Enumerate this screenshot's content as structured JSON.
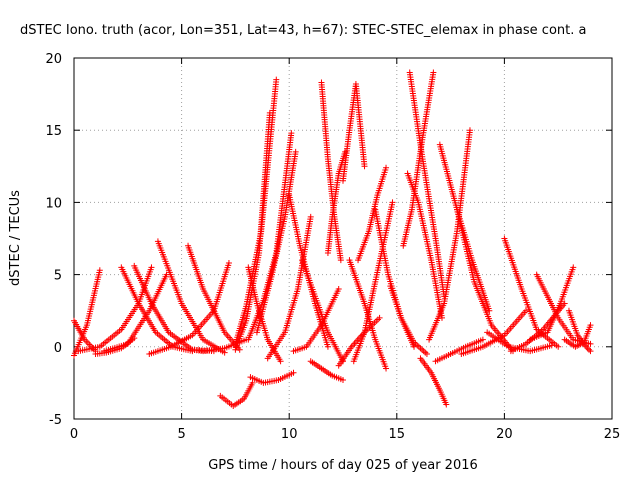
{
  "chart_data": {
    "type": "scatter",
    "title": "dSTEC Iono. truth (acor, Lon=351, Lat=43, h=67): STEC-STEC_elemax in phase cont. a",
    "xlabel": "GPS time / hours of day 025 of year 2016",
    "ylabel": "dSTEC  / TECUs",
    "xlim": [
      0,
      25
    ],
    "ylim": [
      -5,
      20
    ],
    "xticks": [
      "0",
      "5",
      "10",
      "15",
      "20",
      "25"
    ],
    "yticks": [
      "-5",
      "0",
      "5",
      "10",
      "15",
      "20"
    ],
    "grid": true,
    "marker": "+",
    "color": "#ff0000",
    "series": [
      {
        "x": [
          0.0,
          0.6,
          1.2
        ],
        "y": [
          -0.6,
          1.5,
          5.3
        ]
      },
      {
        "x": [
          0.0,
          0.5,
          1.0
        ],
        "y": [
          1.8,
          0.5,
          -0.3
        ]
      },
      {
        "x": [
          0.2,
          1.2,
          2.2,
          3.0,
          3.6
        ],
        "y": [
          -0.3,
          0.0,
          1.2,
          3.0,
          5.5
        ]
      },
      {
        "x": [
          1.0,
          1.5,
          2.2,
          2.8
        ],
        "y": [
          -0.5,
          -0.4,
          -0.1,
          0.6
        ]
      },
      {
        "x": [
          2.2,
          3.0,
          3.8,
          4.6,
          5.5
        ],
        "y": [
          5.5,
          3.0,
          1.0,
          0.0,
          -0.3
        ]
      },
      {
        "x": [
          2.8,
          3.6,
          4.4,
          5.5,
          6.5
        ],
        "y": [
          5.6,
          3.0,
          1.0,
          -0.2,
          -0.3
        ]
      },
      {
        "x": [
          1.4,
          2.5,
          3.5,
          4.3
        ],
        "y": [
          -0.3,
          0.2,
          2.5,
          5.0
        ]
      },
      {
        "x": [
          3.5,
          4.5,
          5.5,
          6.5,
          7.2
        ],
        "y": [
          -0.5,
          0.0,
          0.8,
          2.5,
          5.8
        ]
      },
      {
        "x": [
          3.9,
          5.0,
          6.0,
          7.0
        ],
        "y": [
          7.3,
          3.0,
          0.5,
          -0.4
        ]
      },
      {
        "x": [
          5.5,
          6.0,
          7.0,
          8.0
        ],
        "y": [
          -0.2,
          -0.3,
          -0.1,
          0.5
        ]
      },
      {
        "x": [
          5.3,
          6.0,
          7.0,
          7.7
        ],
        "y": [
          7.0,
          4.0,
          1.0,
          -0.2
        ]
      },
      {
        "x": [
          6.8,
          7.4,
          7.9,
          8.3
        ],
        "y": [
          -3.4,
          -4.1,
          -3.6,
          -2.5
        ]
      },
      {
        "x": [
          7.5,
          8.0,
          8.7,
          9.4
        ],
        "y": [
          0.2,
          2.8,
          8.0,
          18.5
        ]
      },
      {
        "x": [
          7.5,
          8.0,
          8.6,
          9.1
        ],
        "y": [
          -0.2,
          1.8,
          6.5,
          16.2
        ]
      },
      {
        "x": [
          8.1,
          8.8,
          9.4,
          10.1
        ],
        "y": [
          0.5,
          3.2,
          6.5,
          14.8
        ]
      },
      {
        "x": [
          8.5,
          9.2,
          9.8,
          10.3
        ],
        "y": [
          1.0,
          5.0,
          9.0,
          13.5
        ]
      },
      {
        "x": [
          8.1,
          8.5,
          9.0,
          9.6
        ],
        "y": [
          5.5,
          3.0,
          0.5,
          -1.0
        ]
      },
      {
        "x": [
          8.2,
          8.8,
          9.5,
          10.2
        ],
        "y": [
          -2.1,
          -2.5,
          -2.3,
          -1.8
        ]
      },
      {
        "x": [
          9.0,
          9.8,
          10.4,
          11.0
        ],
        "y": [
          -0.8,
          1.0,
          4.0,
          9.0
        ]
      },
      {
        "x": [
          10.0,
          10.5,
          11.2,
          11.8
        ],
        "y": [
          10.5,
          7.0,
          3.0,
          0.0
        ]
      },
      {
        "x": [
          10.2,
          10.8,
          11.5,
          12.3
        ],
        "y": [
          -0.3,
          0.0,
          1.5,
          4.0
        ]
      },
      {
        "x": [
          10.6,
          11.2,
          11.8,
          12.5
        ],
        "y": [
          6.0,
          3.5,
          1.0,
          -1.0
        ]
      },
      {
        "x": [
          11.0,
          11.5,
          12.0,
          12.5
        ],
        "y": [
          -1.0,
          -1.5,
          -2.0,
          -2.3
        ]
      },
      {
        "x": [
          11.5,
          11.8,
          12.1,
          12.4
        ],
        "y": [
          18.3,
          13.0,
          9.0,
          6.0
        ]
      },
      {
        "x": [
          11.8,
          12.0,
          12.3,
          12.6
        ],
        "y": [
          6.5,
          9.0,
          12.0,
          13.5
        ]
      },
      {
        "x": [
          12.3,
          12.9,
          13.5,
          14.2
        ],
        "y": [
          -1.3,
          0.0,
          1.0,
          2.0
        ]
      },
      {
        "x": [
          12.5,
          12.8,
          13.1,
          13.5
        ],
        "y": [
          11.5,
          15.0,
          18.2,
          12.5
        ]
      },
      {
        "x": [
          12.8,
          13.5,
          14.0,
          14.5
        ],
        "y": [
          6.0,
          3.0,
          0.5,
          -1.5
        ]
      },
      {
        "x": [
          13.0,
          13.5,
          14.0,
          14.8
        ],
        "y": [
          -1.0,
          1.0,
          4.5,
          10.0
        ]
      },
      {
        "x": [
          13.2,
          13.7,
          14.1,
          14.5
        ],
        "y": [
          6.0,
          8.0,
          10.5,
          12.4
        ]
      },
      {
        "x": [
          14.0,
          14.6,
          15.2,
          15.8
        ],
        "y": [
          9.5,
          5.0,
          2.0,
          0.0
        ]
      },
      {
        "x": [
          14.7,
          15.2,
          15.8,
          16.4
        ],
        "y": [
          4.2,
          2.0,
          0.3,
          -0.5
        ]
      },
      {
        "x": [
          15.3,
          15.7,
          16.2,
          16.7
        ],
        "y": [
          7.0,
          9.5,
          14.5,
          19.0
        ]
      },
      {
        "x": [
          15.5,
          16.0,
          16.6,
          17.1
        ],
        "y": [
          12.0,
          10.0,
          6.0,
          2.0
        ]
      },
      {
        "x": [
          15.6,
          16.2,
          16.8,
          17.2
        ],
        "y": [
          19.0,
          13.0,
          7.5,
          3.5
        ]
      },
      {
        "x": [
          16.1,
          16.6,
          17.0,
          17.3
        ],
        "y": [
          -0.8,
          -1.8,
          -3.0,
          -4.0
        ]
      },
      {
        "x": [
          16.5,
          17.2,
          17.8,
          18.4
        ],
        "y": [
          0.5,
          3.0,
          8.0,
          15.0
        ]
      },
      {
        "x": [
          16.8,
          17.5,
          18.2,
          19.0
        ],
        "y": [
          -1.0,
          -0.5,
          0.0,
          0.5
        ]
      },
      {
        "x": [
          17.0,
          17.8,
          18.5,
          19.3
        ],
        "y": [
          14.0,
          9.5,
          6.0,
          2.5
        ]
      },
      {
        "x": [
          17.8,
          18.6,
          19.4,
          20.4
        ],
        "y": [
          9.5,
          4.5,
          1.5,
          -0.3
        ]
      },
      {
        "x": [
          18.0,
          19.0,
          20.0,
          21.0
        ],
        "y": [
          -0.5,
          0.0,
          0.8,
          2.5
        ]
      },
      {
        "x": [
          19.2,
          20.2,
          21.2,
          22.2
        ],
        "y": [
          1.0,
          0.0,
          -0.3,
          0.1
        ]
      },
      {
        "x": [
          20.0,
          20.8,
          21.5,
          22.5
        ],
        "y": [
          7.5,
          4.0,
          1.2,
          0.0
        ]
      },
      {
        "x": [
          20.3,
          21.0,
          21.8,
          22.8
        ],
        "y": [
          -0.3,
          0.2,
          1.2,
          3.0
        ]
      },
      {
        "x": [
          21.2,
          22.0,
          22.6,
          23.2
        ],
        "y": [
          0.5,
          1.0,
          3.0,
          5.5
        ]
      },
      {
        "x": [
          21.5,
          22.5,
          23.2,
          24.0
        ],
        "y": [
          5.0,
          2.0,
          0.5,
          0.2
        ]
      },
      {
        "x": [
          22.8,
          23.3,
          23.7,
          24.0
        ],
        "y": [
          0.5,
          0.0,
          0.3,
          1.5
        ]
      },
      {
        "x": [
          23.0,
          23.4,
          23.8,
          24.0
        ],
        "y": [
          2.5,
          0.8,
          0.0,
          -0.3
        ]
      }
    ]
  }
}
